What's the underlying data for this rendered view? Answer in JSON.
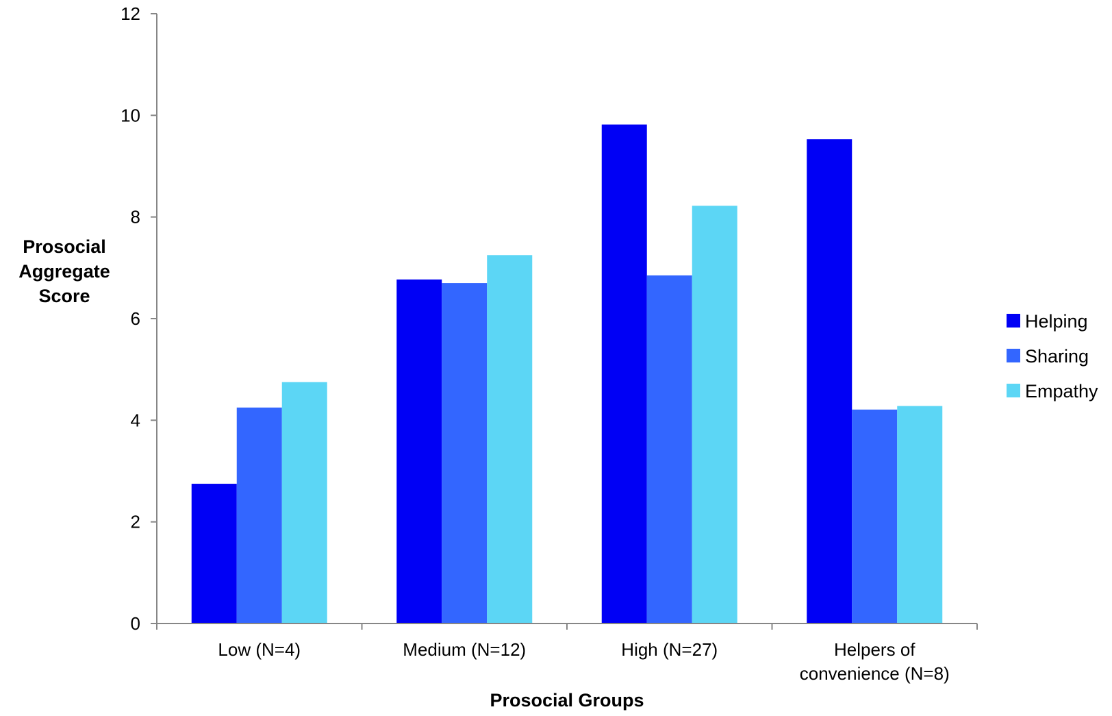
{
  "chart_data": {
    "type": "bar",
    "title": "",
    "xlabel": "Prosocial Groups",
    "ylabel": [
      "Prosocial",
      "Aggregate",
      "Score"
    ],
    "ylim": [
      0,
      12
    ],
    "yticks": [
      "0",
      "2",
      "4",
      "6",
      "8",
      "10",
      "12"
    ],
    "categories": [
      [
        "Low (N=4)"
      ],
      [
        "Medium (N=12)"
      ],
      [
        "High (N=27)"
      ],
      [
        "Helpers of",
        "convenience (N=8)"
      ]
    ],
    "series": [
      {
        "name": "Helping",
        "color": "#0000F5",
        "values": [
          2.75,
          6.77,
          9.82,
          9.53
        ]
      },
      {
        "name": "Sharing",
        "color": "#3366FF",
        "values": [
          4.25,
          6.7,
          6.85,
          4.21
        ]
      },
      {
        "name": "Empathy",
        "color": "#5CD6F5",
        "values": [
          4.75,
          7.25,
          8.22,
          4.28
        ]
      }
    ],
    "grid": false,
    "legend_position": "right"
  }
}
